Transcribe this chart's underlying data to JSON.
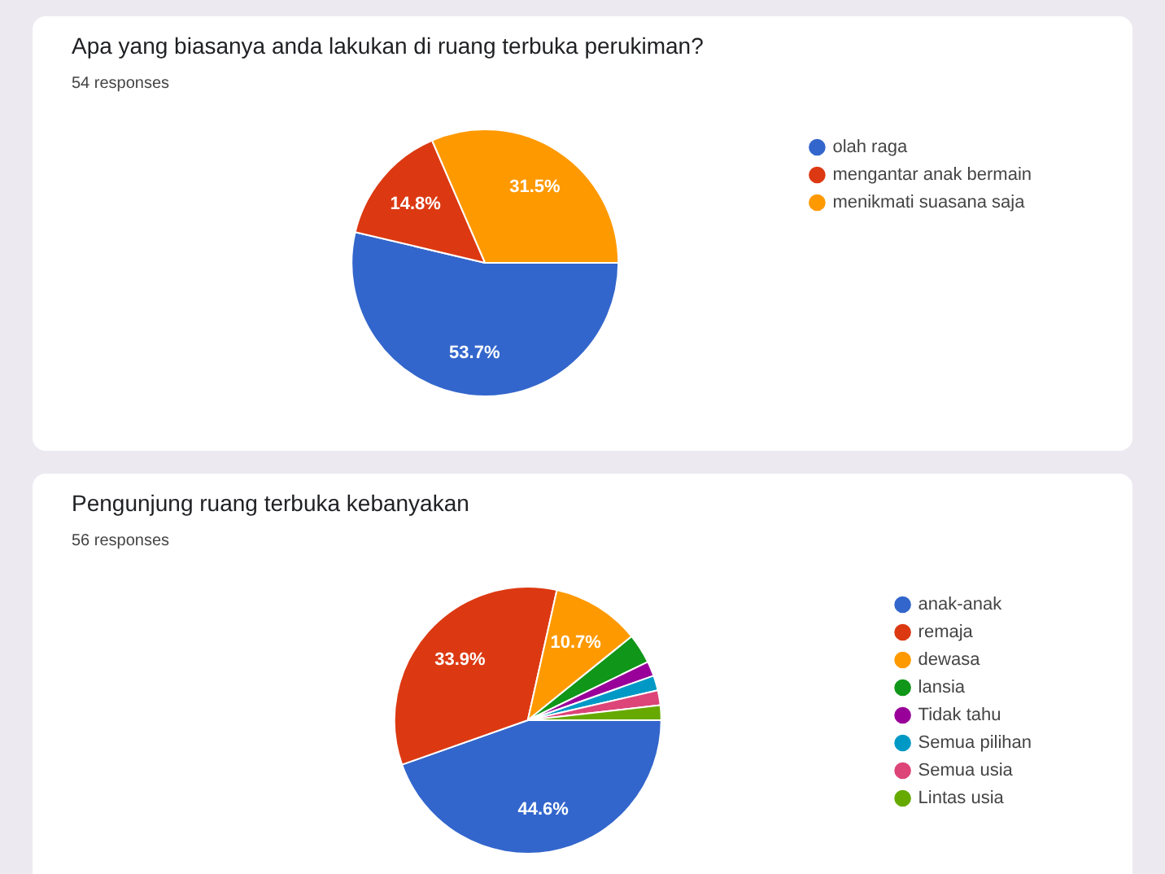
{
  "chart_data": [
    {
      "type": "pie",
      "title": "Apa yang biasanya anda lakukan di ruang terbuka perukiman?",
      "subtitle": "54 responses",
      "categories": [
        "olah raga",
        "mengantar anak bermain",
        "menikmati suasana saja"
      ],
      "values": [
        53.7,
        14.8,
        31.5
      ],
      "colors": [
        "#3366cc",
        "#dc3912",
        "#ff9900"
      ],
      "value_labels": [
        "53.7%",
        "14.8%",
        "31.5%"
      ],
      "legend": "right"
    },
    {
      "type": "pie",
      "title": "Pengunjung ruang terbuka kebanyakan",
      "subtitle": "56 responses",
      "categories": [
        "anak-anak",
        "remaja",
        "dewasa",
        "lansia",
        "Tidak tahu",
        "Semua pilihan",
        "Semua usia",
        "Lintas usia"
      ],
      "values": [
        44.6,
        33.9,
        10.7,
        3.6,
        1.8,
        1.8,
        1.8,
        1.8
      ],
      "colors": [
        "#3366cc",
        "#dc3912",
        "#ff9900",
        "#109618",
        "#990099",
        "#0099c6",
        "#dd4477",
        "#66aa00"
      ],
      "value_labels": [
        "44.6%",
        "33.9%",
        "10.7%",
        null,
        null,
        null,
        null,
        null
      ],
      "legend": "right"
    }
  ]
}
